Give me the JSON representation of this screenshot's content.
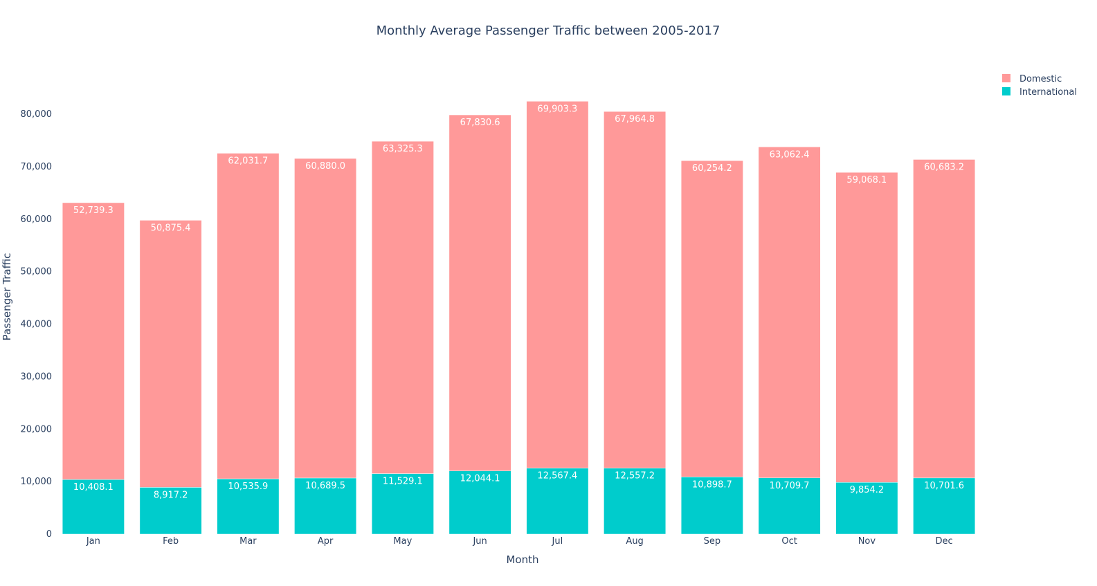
{
  "chart_data": {
    "type": "bar",
    "barmode": "stack",
    "title": "Monthly Average Passenger Traffic between 2005-2017",
    "xlabel": "Month",
    "ylabel": "Passenger Traffic",
    "categories": [
      "Jan",
      "Feb",
      "Mar",
      "Apr",
      "May",
      "Jun",
      "Jul",
      "Aug",
      "Sep",
      "Oct",
      "Nov",
      "Dec"
    ],
    "series": [
      {
        "name": "International",
        "color": "#00cccc",
        "values": [
          10408.1,
          8917.2,
          10535.9,
          10689.5,
          11529.1,
          12044.1,
          12567.4,
          12557.2,
          10898.7,
          10709.7,
          9854.2,
          10701.6
        ],
        "labels": [
          "10,408.1",
          "8,917.2",
          "10,535.9",
          "10,689.5",
          "11,529.1",
          "12,044.1",
          "12,567.4",
          "12,557.2",
          "10,898.7",
          "10,709.7",
          "9,854.2",
          "10,701.6"
        ]
      },
      {
        "name": "Domestic",
        "color": "#ff9999",
        "values": [
          52739.3,
          50875.4,
          62031.7,
          60880.0,
          63325.3,
          67830.6,
          69903.3,
          67964.8,
          60254.2,
          63062.4,
          59068.1,
          60683.2
        ],
        "labels": [
          "52,739.3",
          "50,875.4",
          "62,031.7",
          "60,880.0",
          "63,325.3",
          "67,830.6",
          "69,903.3",
          "67,964.8",
          "60,254.2",
          "63,062.4",
          "59,068.1",
          "60,683.2"
        ]
      }
    ],
    "legend": [
      "Domestic",
      "International"
    ],
    "legend_position": "top-right",
    "ylim": [
      0,
      87000
    ],
    "yticks": [
      0,
      10000,
      20000,
      30000,
      40000,
      50000,
      60000,
      70000,
      80000
    ],
    "ytick_labels": [
      "0",
      "10,000",
      "20,000",
      "30,000",
      "40,000",
      "50,000",
      "60,000",
      "70,000",
      "80,000"
    ],
    "grid": false
  }
}
